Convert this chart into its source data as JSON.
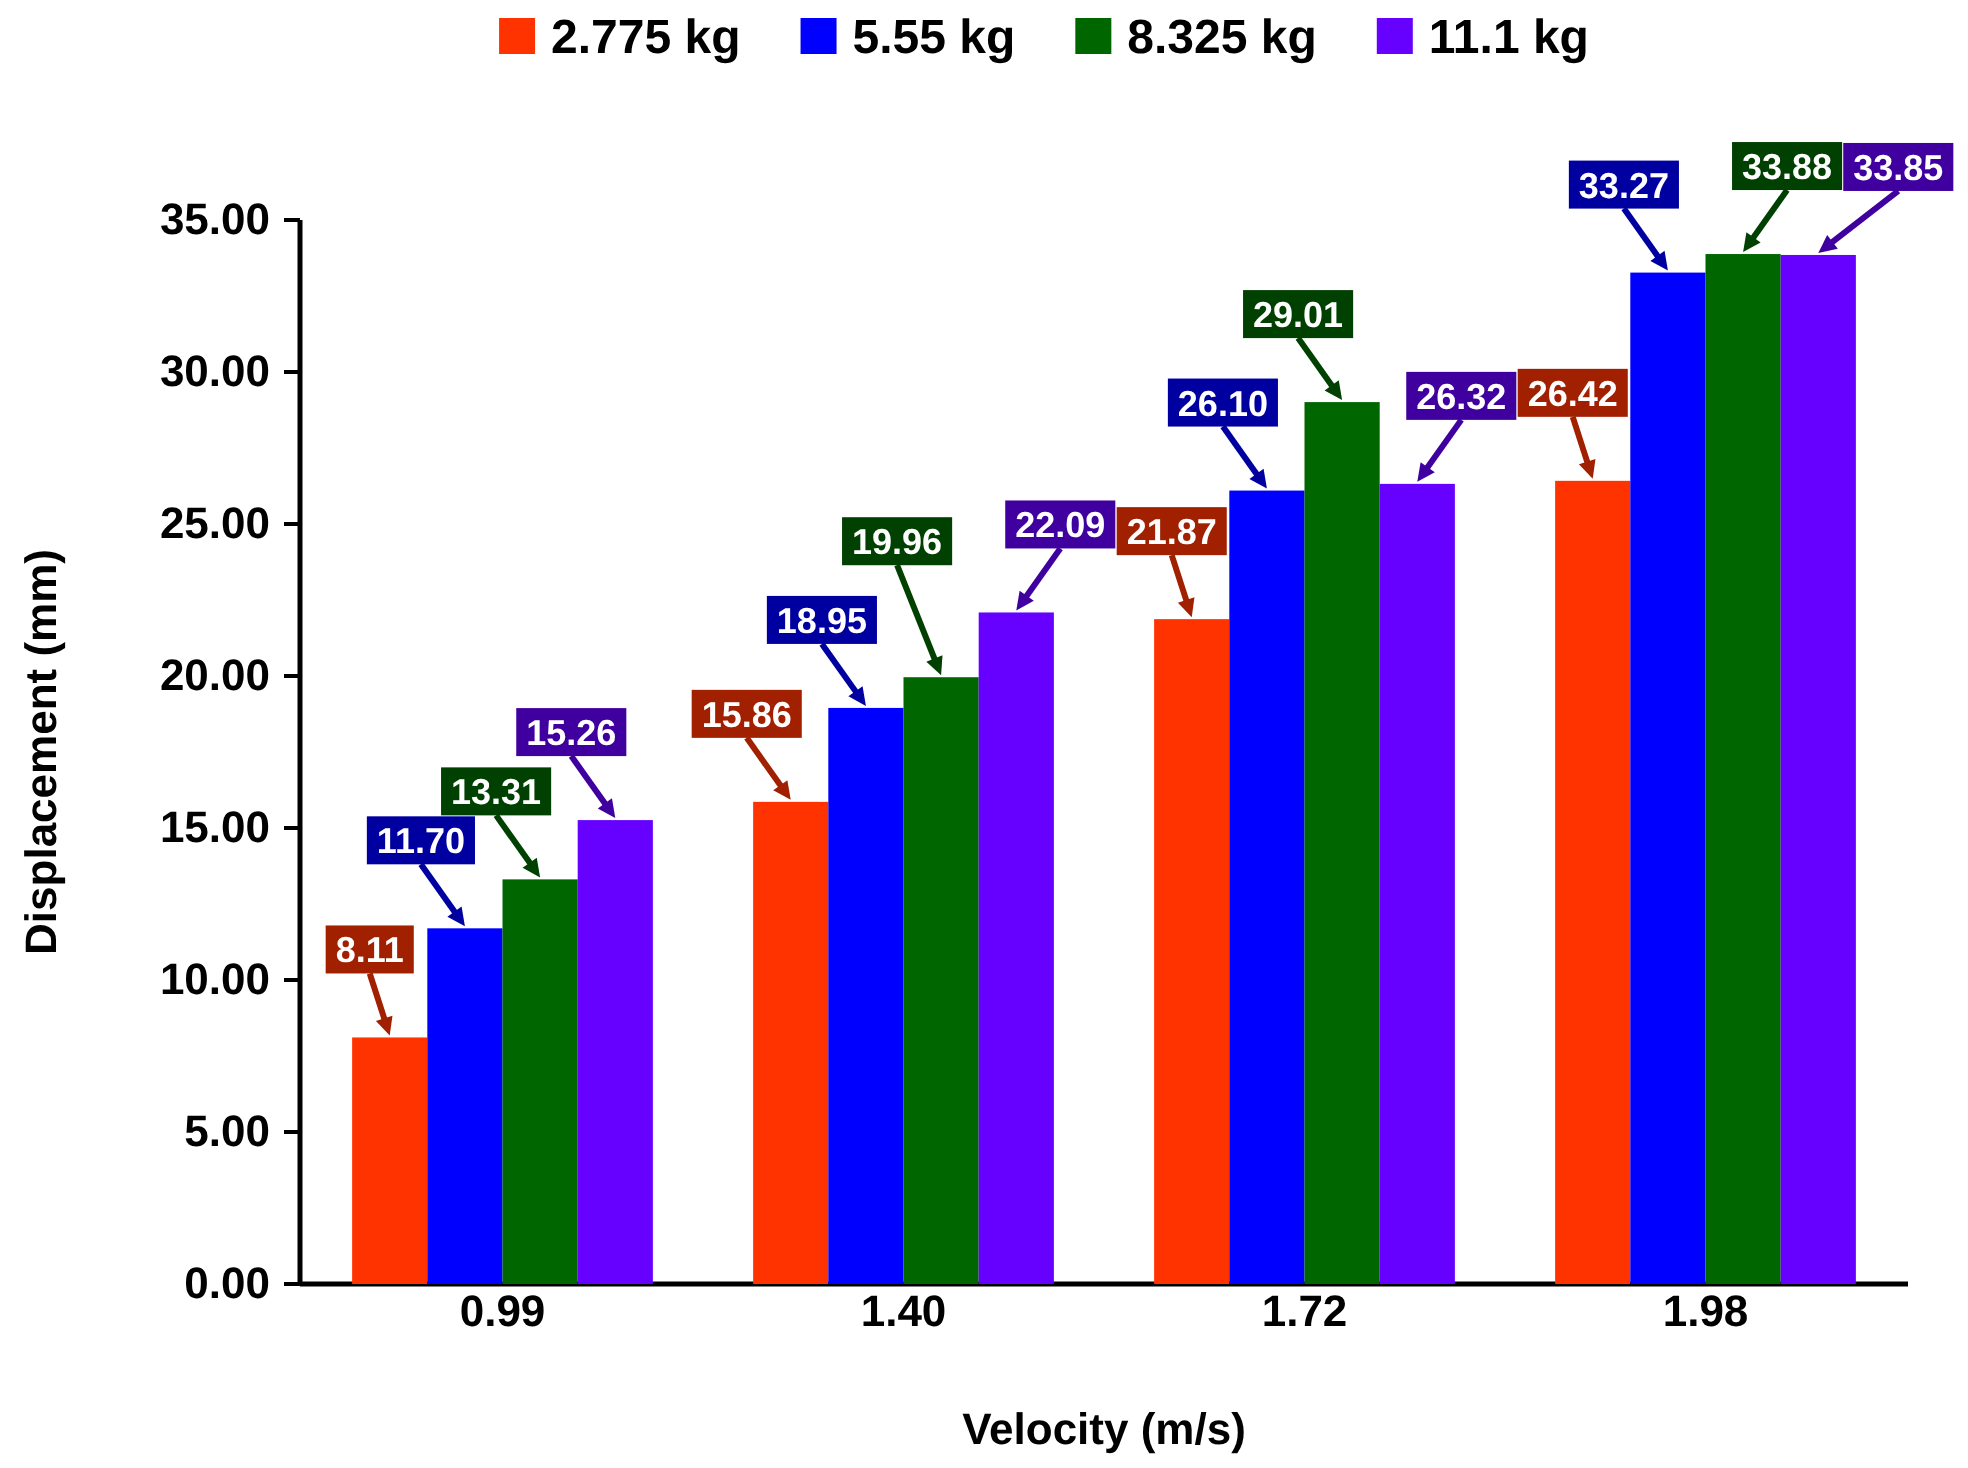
{
  "chart_data": {
    "type": "bar",
    "xlabel": "Velocity (m/s)",
    "ylabel": "Displacement (mm)",
    "categories": [
      "0.99",
      "1.40",
      "1.72",
      "1.98"
    ],
    "series": [
      {
        "name": "2.775 kg",
        "color": "#ff3300",
        "values": [
          8.11,
          15.86,
          21.87,
          26.42
        ],
        "value_labels": [
          "8.11",
          "15.86",
          "21.87",
          "26.42"
        ]
      },
      {
        "name": "5.55 kg",
        "color": "#0000ff",
        "values": [
          11.7,
          18.95,
          26.1,
          33.27
        ],
        "value_labels": [
          "11.70",
          "18.95",
          "26.10",
          "33.27"
        ]
      },
      {
        "name": "8.325 kg",
        "color": "#006600",
        "values": [
          13.31,
          19.96,
          29.01,
          33.88
        ],
        "value_labels": [
          "13.31",
          "19.96",
          "29.01",
          "33.88"
        ]
      },
      {
        "name": "11.1 kg",
        "color": "#6600ff",
        "values": [
          15.26,
          22.09,
          26.32,
          33.85
        ],
        "value_labels": [
          "15.26",
          "22.09",
          "26.32",
          "33.85"
        ]
      }
    ],
    "ylim": [
      0,
      35
    ],
    "yticks": [
      {
        "value": 0,
        "label": "0.00"
      },
      {
        "value": 5,
        "label": "5.00"
      },
      {
        "value": 10,
        "label": "10.00"
      },
      {
        "value": 15,
        "label": "15.00"
      },
      {
        "value": 20,
        "label": "20.00"
      },
      {
        "value": 25,
        "label": "25.00"
      },
      {
        "value": 30,
        "label": "30.00"
      },
      {
        "value": 35,
        "label": "35.00"
      }
    ],
    "legend": "top",
    "grid": false
  }
}
